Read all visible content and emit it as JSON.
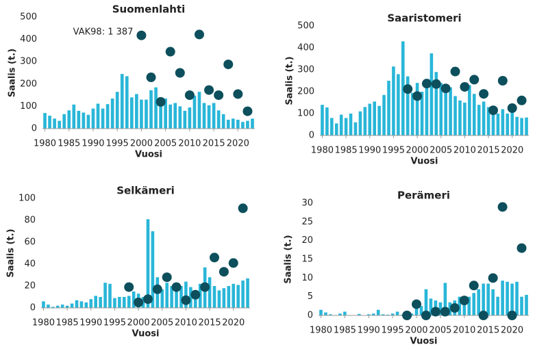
{
  "chart_data": [
    {
      "type": "bar",
      "title": "Suomenlahti",
      "xlabel": "Vuosi",
      "ylabel": "Saalis (t.)",
      "annotation": "VAK98: 1 387",
      "x": [
        1980,
        1981,
        1982,
        1983,
        1984,
        1985,
        1986,
        1987,
        1988,
        1989,
        1990,
        1991,
        1992,
        1993,
        1994,
        1995,
        1996,
        1997,
        1998,
        1999,
        2000,
        2001,
        2002,
        2003,
        2004,
        2005,
        2006,
        2007,
        2008,
        2009,
        2010,
        2011,
        2012,
        2013,
        2014,
        2015,
        2016,
        2017,
        2018,
        2019,
        2020,
        2021,
        2022,
        2023
      ],
      "values": [
        70,
        58,
        45,
        35,
        65,
        82,
        108,
        80,
        72,
        62,
        90,
        112,
        90,
        110,
        135,
        165,
        245,
        235,
        140,
        155,
        130,
        130,
        172,
        185,
        140,
        135,
        108,
        115,
        100,
        80,
        95,
        148,
        165,
        115,
        105,
        115,
        82,
        65,
        40,
        45,
        40,
        30,
        35,
        45
      ],
      "color": "#29b6d8",
      "xlim": [
        1979.5,
        2023.5
      ],
      "xticks": [
        1980,
        1985,
        1990,
        1995,
        2000,
        2005,
        2010,
        2015,
        2020
      ],
      "ylim": [
        0,
        500
      ],
      "yticks": [
        0,
        100,
        200,
        300,
        400,
        500
      ],
      "overlay": {
        "type": "scatter",
        "color": "#0d4f5c",
        "x": [
          2000,
          2002,
          2004,
          2006,
          2008,
          2010,
          2012,
          2014,
          2016,
          2018,
          2020,
          2022
        ],
        "values": [
          418,
          230,
          120,
          345,
          250,
          150,
          422,
          173,
          150,
          288,
          155,
          78
        ]
      }
    },
    {
      "type": "bar",
      "title": "Saaristomeri",
      "xlabel": "Vuosi",
      "ylabel": "Saalis (t.)",
      "x": [
        1980,
        1981,
        1982,
        1983,
        1984,
        1985,
        1986,
        1987,
        1988,
        1989,
        1990,
        1991,
        1992,
        1993,
        1994,
        1995,
        1996,
        1997,
        1998,
        1999,
        2000,
        2001,
        2002,
        2003,
        2004,
        2005,
        2006,
        2007,
        2008,
        2009,
        2010,
        2011,
        2012,
        2013,
        2014,
        2015,
        2016,
        2017,
        2018,
        2019,
        2020,
        2021,
        2022,
        2023
      ],
      "values": [
        140,
        128,
        80,
        55,
        95,
        80,
        100,
        60,
        110,
        130,
        145,
        155,
        135,
        185,
        250,
        315,
        280,
        430,
        270,
        195,
        240,
        200,
        245,
        375,
        290,
        240,
        230,
        220,
        180,
        160,
        150,
        230,
        190,
        140,
        155,
        130,
        125,
        100,
        120,
        100,
        110,
        85,
        80,
        82
      ],
      "color": "#29b6d8",
      "xlim": [
        1979.5,
        2023.5
      ],
      "xticks": [
        1980,
        1985,
        1990,
        1995,
        2000,
        2005,
        2010,
        2015,
        2020
      ],
      "ylim": [
        0,
        500
      ],
      "yticks": [
        0,
        100,
        200,
        300,
        400,
        500
      ],
      "overlay": {
        "type": "scatter",
        "color": "#0d4f5c",
        "x": [
          1998,
          2000,
          2002,
          2004,
          2006,
          2008,
          2010,
          2012,
          2014,
          2016,
          2018,
          2020,
          2022
        ],
        "values": [
          212,
          180,
          237,
          235,
          215,
          292,
          222,
          255,
          190,
          115,
          250,
          125,
          160
        ]
      }
    },
    {
      "type": "bar",
      "title": "Selkämeri",
      "xlabel": "Vuosi",
      "ylabel": "Saalis (t.)",
      "x": [
        1980,
        1981,
        1982,
        1983,
        1984,
        1985,
        1986,
        1987,
        1988,
        1989,
        1990,
        1991,
        1992,
        1993,
        1994,
        1995,
        1996,
        1997,
        1998,
        1999,
        2000,
        2001,
        2002,
        2003,
        2004,
        2005,
        2006,
        2007,
        2008,
        2009,
        2010,
        2011,
        2012,
        2013,
        2014,
        2015,
        2016,
        2017,
        2018,
        2019,
        2020,
        2021,
        2022,
        2023
      ],
      "values": [
        6,
        3,
        1,
        2,
        3,
        2,
        4,
        7,
        6,
        5,
        8,
        11,
        10,
        23,
        22,
        9,
        10,
        10,
        11,
        15,
        13,
        10,
        81,
        70,
        28,
        17,
        23,
        20,
        15,
        20,
        24,
        19,
        15,
        22,
        37,
        28,
        20,
        16,
        18,
        20,
        22,
        21,
        25,
        27
      ],
      "color": "#29b6d8",
      "xlim": [
        1979.5,
        2023.5
      ],
      "xticks": [
        1980,
        1985,
        1990,
        1995,
        2000,
        2005,
        2010,
        2015,
        2020
      ],
      "ylim": [
        0,
        100
      ],
      "yticks": [
        0,
        20,
        40,
        60,
        80,
        100
      ],
      "overlay": {
        "type": "scatter",
        "color": "#0d4f5c",
        "x": [
          1998,
          2000,
          2002,
          2004,
          2006,
          2008,
          2010,
          2012,
          2014,
          2016,
          2018,
          2020,
          2022
        ],
        "values": [
          19,
          5,
          8,
          17,
          28,
          19,
          7,
          12,
          19,
          46,
          33,
          41,
          91
        ]
      }
    },
    {
      "type": "bar",
      "title": "Perämeri",
      "xlabel": "Vuosi",
      "ylabel": "Saalis (t.)",
      "x": [
        1980,
        1981,
        1982,
        1983,
        1984,
        1985,
        1986,
        1987,
        1988,
        1989,
        1990,
        1991,
        1992,
        1993,
        1994,
        1995,
        1996,
        1997,
        1998,
        1999,
        2000,
        2001,
        2002,
        2003,
        2004,
        2005,
        2006,
        2007,
        2008,
        2009,
        2010,
        2011,
        2012,
        2013,
        2014,
        2015,
        2016,
        2017,
        2018,
        2019,
        2020,
        2021,
        2022,
        2023
      ],
      "values": [
        1.5,
        0.8,
        0.3,
        0.1,
        0.5,
        1,
        0.1,
        0,
        0.4,
        0,
        0.3,
        0.5,
        1.5,
        0.3,
        0.2,
        0.5,
        1,
        0.2,
        0.3,
        0.5,
        2,
        2.5,
        7,
        4.5,
        4,
        3.5,
        8.7,
        3.5,
        4,
        5,
        4.5,
        5,
        6,
        7,
        8.5,
        8.5,
        7,
        5,
        9.3,
        9,
        8.5,
        9,
        5,
        5.5
      ],
      "color": "#29b6d8",
      "xlim": [
        1979.5,
        2023.5
      ],
      "xticks": [
        1980,
        1985,
        1990,
        1995,
        2000,
        2005,
        2010,
        2015,
        2020
      ],
      "ylim": [
        0,
        30
      ],
      "yticks": [
        0,
        5,
        10,
        15,
        20,
        25,
        30
      ],
      "overlay": {
        "type": "scatter",
        "color": "#0d4f5c",
        "x": [
          1998,
          2000,
          2002,
          2004,
          2006,
          2008,
          2010,
          2012,
          2014,
          2016,
          2018,
          2020,
          2022
        ],
        "values": [
          0,
          3,
          0,
          1,
          1,
          2,
          4,
          8,
          0,
          10,
          29,
          0,
          18
        ]
      }
    }
  ]
}
